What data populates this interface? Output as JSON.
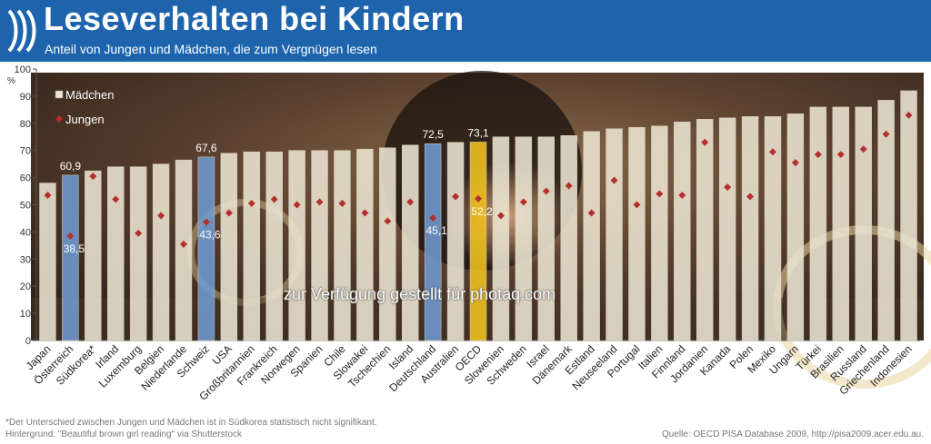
{
  "header": {
    "title": "Leseverhalten bei Kindern",
    "subtitle": "Anteil von Jungen und Mädchen, die zum Vergnügen lesen"
  },
  "chart_data": {
    "type": "bar",
    "title": "Leseverhalten bei Kindern",
    "subtitle": "Anteil von Jungen und Mädchen, die zum Vergnügen lesen",
    "ylabel": "%",
    "ylim": [
      0,
      100
    ],
    "yticks": [
      0,
      10,
      20,
      30,
      40,
      50,
      60,
      70,
      80,
      90,
      100
    ],
    "grid": false,
    "legend_position": "top-left",
    "categories": [
      "Japan",
      "Österreich",
      "Südkorea*",
      "Irland",
      "Luxemburg",
      "Belgien",
      "Niederlande",
      "Schweiz",
      "USA",
      "Großbritannien",
      "Frankreich",
      "Norwegen",
      "Spanien",
      "Chile",
      "Slowakei",
      "Tschechien",
      "Island",
      "Deutschland",
      "Australien",
      "OECD",
      "Slowenien",
      "Schweden",
      "Israel",
      "Dänemark",
      "Estland",
      "Neuseeland",
      "Portugal",
      "Italien",
      "Finnland",
      "Jordanien",
      "Kanada",
      "Polen",
      "Mexiko",
      "Ungarn",
      "Türkei",
      "Brasilien",
      "Russland",
      "Griechenland",
      "Indonesien"
    ],
    "highlighted_categories": [
      "Österreich",
      "Schweiz",
      "Deutschland",
      "OECD"
    ],
    "series": [
      {
        "name": "Mädchen",
        "type": "bar",
        "values": [
          58,
          60.9,
          62.5,
          64,
          64,
          65,
          66.5,
          67.6,
          69,
          69.5,
          69.5,
          70,
          70,
          70,
          70.5,
          71,
          72,
          72.5,
          73,
          73.1,
          75,
          75,
          75,
          75.5,
          77,
          78,
          78.5,
          79,
          80.5,
          81.5,
          82,
          82.5,
          82.5,
          83.5,
          86,
          86,
          86,
          88.5,
          92
        ]
      },
      {
        "name": "Jungen",
        "type": "scatter",
        "values": [
          53.5,
          38.5,
          60.5,
          52,
          39.5,
          46,
          35.5,
          43.6,
          47,
          50.5,
          52,
          50,
          51,
          50.5,
          47,
          44,
          51,
          45.1,
          53,
          52.2,
          46,
          51,
          55,
          57,
          47,
          59,
          50,
          54,
          53.5,
          73,
          56.5,
          53,
          69.5,
          65.5,
          68.5,
          68.5,
          70.5,
          76,
          83
        ]
      }
    ],
    "data_labels": [
      {
        "category": "Österreich",
        "girls": "60,9",
        "boys": "38,5"
      },
      {
        "category": "Schweiz",
        "girls": "67,6",
        "boys": "43,6"
      },
      {
        "category": "Deutschland",
        "girls": "72,5",
        "boys": "45,1"
      },
      {
        "category": "OECD",
        "girls": "73,1",
        "boys": "52,2"
      }
    ]
  },
  "colors": {
    "header_bg": "#1d64ad",
    "bar_default": "#ece5d2",
    "bar_highlight": "#6f9ad2",
    "bar_oecd": "#f1c21f",
    "marker": "#b5302d"
  },
  "footer": {
    "footnote": "*Der Unterschied zwischen Jungen und Mädchen ist in Südkorea statistisch nicht  signifikant.",
    "background_credit": "Hintergrund: \"Beautiful brown girl reading\" via Shutterstock",
    "source": "Quelle: OECD PISA Database 2009, http://pisa2009.acer.edu.au."
  },
  "watermark": "zur Verfügung gestellt für photaq.com"
}
